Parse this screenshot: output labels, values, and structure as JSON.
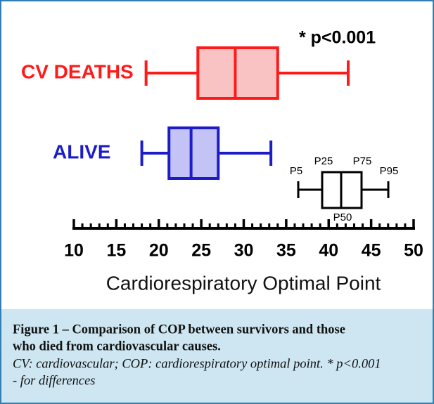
{
  "chart_data": {
    "type": "boxplot",
    "orientation": "horizontal",
    "xlabel": "Cardiorespiratory Optimal Point",
    "xlim": [
      10,
      50
    ],
    "xticks": [
      10,
      15,
      20,
      25,
      30,
      35,
      40,
      45,
      50
    ],
    "xminorticks": [
      11,
      12,
      13,
      14,
      16,
      17,
      18,
      19,
      21,
      22,
      23,
      24,
      26,
      27,
      28,
      29,
      31,
      32,
      33,
      34,
      36,
      37,
      38,
      39,
      41,
      42,
      43,
      44,
      46,
      47,
      48,
      49
    ],
    "annotation": "* p<0.001",
    "series": [
      {
        "name": "CV DEATHS",
        "color": "#ff1a1a",
        "fill": "#f9c3c3",
        "whislo": 18.5,
        "q1": 24.6,
        "med": 29,
        "q3": 34,
        "whishi": 42.3
      },
      {
        "name": "ALIVE",
        "color": "#1c1cc8",
        "fill": "#c3c3f5",
        "whislo": 18,
        "q1": 21.2,
        "med": 23.8,
        "q3": 27,
        "whishi": 33.2
      }
    ],
    "key": {
      "p5": "P5",
      "p25": "P25",
      "p50": "P50",
      "p75": "P75",
      "p95": "P95"
    }
  },
  "caption": {
    "title_lines": [
      "Figure 1 – Comparison of COP between survivors and those",
      "who died from cardiovascular causes."
    ],
    "note_lines": [
      "CV: cardiovascular; COP: cardiorespiratory optimal point. * p<0.001",
      "- for differences"
    ]
  }
}
